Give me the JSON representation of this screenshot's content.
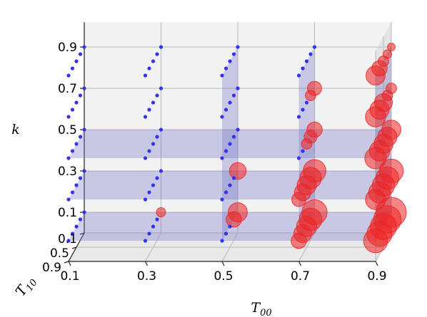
{
  "chart_data": {
    "type": "scatter",
    "projection": "3d",
    "axes": {
      "x": {
        "label": "T",
        "label_subscript": "00",
        "ticks": [
          "0.1",
          "0.3",
          "0.5",
          "0.7",
          "0.9"
        ],
        "range": [
          0.1,
          0.9
        ]
      },
      "y": {
        "label": "T",
        "label_subscript": "10",
        "ticks": [
          "0.1",
          "0.5",
          "0.9"
        ],
        "range": [
          0.1,
          0.9
        ]
      },
      "z": {
        "label": "k",
        "ticks": [
          "0.1",
          "0.3",
          "0.5",
          "0.7",
          "0.9"
        ],
        "range": [
          0.1,
          0.9
        ]
      }
    },
    "grid": true,
    "marker_colors": {
      "small": "#3333ee",
      "large": "#ee2222",
      "plane": "#6f70c8"
    },
    "planes": [
      {
        "orientation": "horizontal",
        "k": 0.1
      },
      {
        "orientation": "horizontal",
        "k": 0.3
      },
      {
        "orientation": "horizontal",
        "k": 0.5
      },
      {
        "orientation": "vertical",
        "T00": 0.5
      },
      {
        "orientation": "vertical",
        "T00": 0.7
      },
      {
        "orientation": "vertical",
        "T00": 0.9
      }
    ],
    "T10_values": [
      0.1,
      0.3,
      0.5,
      0.7,
      0.9
    ],
    "sizes": {
      "0.1": {
        "0.1": [
          0,
          0,
          0,
          0,
          0
        ],
        "0.3": [
          0,
          0,
          0,
          0,
          0
        ],
        "0.5": [
          0,
          0,
          0,
          0,
          0
        ],
        "0.7": [
          0,
          0,
          0,
          0,
          0
        ],
        "0.9": [
          0,
          0,
          0,
          0,
          0
        ]
      },
      "0.3": {
        "0.1": [
          0.15,
          0,
          0,
          0,
          0
        ],
        "0.3": [
          0,
          0,
          0,
          0,
          0
        ],
        "0.5": [
          0,
          0,
          0,
          0,
          0
        ],
        "0.7": [
          0,
          0,
          0,
          0,
          0
        ],
        "0.9": [
          0,
          0,
          0,
          0,
          0
        ]
      },
      "0.5": {
        "0.1": [
          0.55,
          0.4,
          0,
          0,
          0
        ],
        "0.3": [
          0.45,
          0,
          0,
          0,
          0
        ],
        "0.5": [
          0,
          0,
          0,
          0,
          0
        ],
        "0.7": [
          0,
          0,
          0,
          0,
          0
        ],
        "0.9": [
          0,
          0,
          0,
          0,
          0
        ]
      },
      "0.7": {
        "0.1": [
          0.8,
          0.7,
          0.6,
          0.5,
          0.4
        ],
        "0.3": [
          0.7,
          0.65,
          0.55,
          0.45,
          0.35
        ],
        "0.5": [
          0.4,
          0.3,
          0.2,
          0,
          0
        ],
        "0.7": [
          0.35,
          0.2,
          0,
          0,
          0
        ],
        "0.9": [
          0,
          0,
          0,
          0,
          0
        ]
      },
      "0.9": {
        "0.1": [
          1.0,
          0.9,
          0.85,
          0.8,
          0.75
        ],
        "0.3": [
          0.75,
          0.7,
          0.68,
          0.65,
          0.6
        ],
        "0.5": [
          0.55,
          0.55,
          0.55,
          0.6,
          0.65
        ],
        "0.7": [
          0.2,
          0.2,
          0.5,
          0.55,
          0.6
        ],
        "0.9": [
          0.08,
          0.12,
          0.2,
          0.4,
          0.55
        ]
      }
    }
  }
}
